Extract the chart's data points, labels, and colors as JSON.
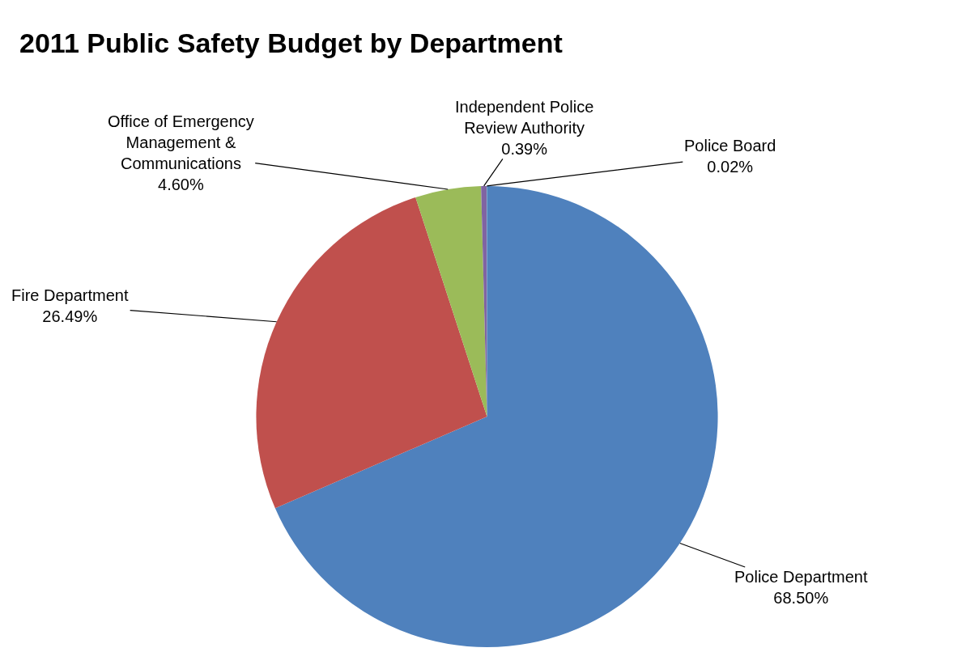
{
  "chart_data": {
    "type": "pie",
    "title": "2011 Public Safety Budget by Department",
    "categories": [
      "Police Department",
      "Fire Department",
      "Office of Emergency Management & Communications",
      "Independent Police Review Authority",
      "Police Board"
    ],
    "values": [
      68.5,
      26.49,
      4.6,
      0.39,
      0.02
    ],
    "value_labels": [
      "68.50%",
      "26.49%",
      "4.60%",
      "0.39%",
      "0.02%"
    ],
    "colors": [
      "#4f81bd",
      "#c0504d",
      "#9bbb59",
      "#8064a2",
      "#4bacc6"
    ],
    "legend": false
  }
}
